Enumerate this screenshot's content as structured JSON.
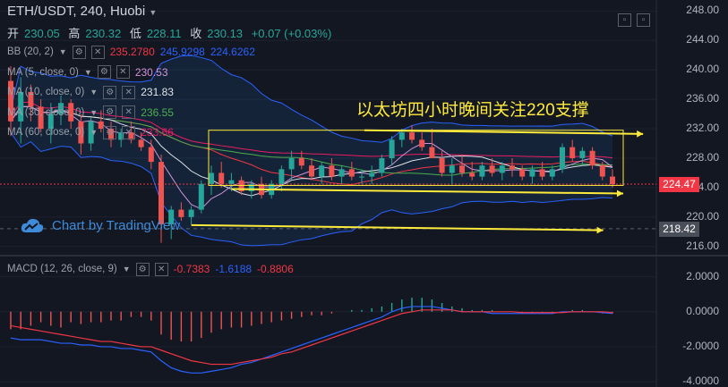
{
  "header": {
    "symbol": "ETH/USDT, 240, Huobi",
    "ohlc": [
      {
        "label": "开",
        "value": "230.05"
      },
      {
        "label": "高",
        "value": "230.32"
      },
      {
        "label": "低",
        "value": "228.11"
      },
      {
        "label": "收",
        "value": "230.13"
      }
    ],
    "change": "+0.07 (+0.03%)"
  },
  "indicators": [
    {
      "name": "BB (20, 2)",
      "values": [
        "235.2780",
        "245.9298",
        "224.6262"
      ],
      "colors": [
        "#f23645",
        "#2962ff",
        "#2962ff"
      ]
    },
    {
      "name": "MA (5, close, 0)",
      "values": [
        "230.53"
      ],
      "colors": [
        "#ce93d8"
      ]
    },
    {
      "name": "MA (10, close, 0)",
      "values": [
        "231.83"
      ],
      "colors": [
        "#e0e3eb"
      ]
    },
    {
      "name": "MA (30, close, 0)",
      "values": [
        "236.55"
      ],
      "colors": [
        "#4caf50"
      ]
    },
    {
      "name": "MA (60, close, 0)",
      "values": [
        "233.66"
      ],
      "colors": [
        "#e91e63"
      ]
    }
  ],
  "macd": {
    "name": "MACD (12, 26, close, 9)",
    "values": [
      "-0.7383",
      "-1.6188",
      "-0.8806"
    ],
    "colors": [
      "#f23645",
      "#2962ff",
      "#f23645"
    ]
  },
  "annotation": "以太坊四小时晚间关注220支撑",
  "watermark": "Chart by TradingView",
  "price_tags": [
    {
      "value": "224.47",
      "color": "#f23645",
      "price": 224.47
    },
    {
      "value": "218.42",
      "color": "#4a4e59",
      "price": 218.42
    }
  ],
  "colors": {
    "up": "#26a69a",
    "down": "#ef5350",
    "annotation": "#ffeb3b",
    "bg": "#131722"
  },
  "chart_data": [
    {
      "type": "candlestick",
      "yticks": [
        "216.00",
        "220.00",
        "224.00",
        "228.00",
        "232.00",
        "236.00",
        "240.00",
        "244.00",
        "248.00"
      ],
      "ytick_values": [
        216,
        220,
        224,
        228,
        232,
        236,
        240,
        244,
        248
      ],
      "ylim": [
        215,
        249.5
      ],
      "candles": [
        [
          238.5,
          240.5,
          231,
          233
        ],
        [
          233,
          239,
          230,
          237
        ],
        [
          237,
          238,
          233,
          235
        ],
        [
          235,
          236,
          231.5,
          232
        ],
        [
          232,
          235.5,
          230,
          234
        ],
        [
          234,
          236.5,
          232.5,
          235.5
        ],
        [
          235.5,
          236,
          232,
          233
        ],
        [
          233,
          234,
          228.5,
          230
        ],
        [
          230,
          233.5,
          229,
          233
        ],
        [
          233,
          234.5,
          231.5,
          232
        ],
        [
          232,
          233,
          229.5,
          230.5
        ],
        [
          230.5,
          232,
          229.5,
          231.5
        ],
        [
          231.5,
          233,
          230,
          230.5
        ],
        [
          230.5,
          231.5,
          229,
          229.5
        ],
        [
          229.5,
          230.5,
          226.5,
          227.5
        ],
        [
          227.5,
          228.5,
          216.5,
          219
        ],
        [
          219,
          221.5,
          217,
          221
        ],
        [
          221,
          222,
          219.5,
          220
        ],
        [
          220,
          221.5,
          219,
          221
        ],
        [
          221,
          225,
          220.5,
          224.5
        ],
        [
          224.5,
          227,
          223,
          226
        ],
        [
          226,
          227.5,
          224,
          224.5
        ],
        [
          224.5,
          226,
          223.5,
          225
        ],
        [
          225,
          225.5,
          223,
          223.5
        ],
        [
          223.5,
          225,
          222.5,
          224.5
        ],
        [
          224.5,
          225.5,
          222.5,
          223
        ],
        [
          223,
          225,
          222.5,
          224.5
        ],
        [
          224.5,
          227,
          223.5,
          226.5
        ],
        [
          226.5,
          229,
          225,
          228
        ],
        [
          228,
          229,
          226.5,
          227
        ],
        [
          227,
          228,
          225,
          225.5
        ],
        [
          225.5,
          227.5,
          224.5,
          227
        ],
        [
          227,
          228,
          225,
          225.5
        ],
        [
          225.5,
          227,
          224.5,
          226.5
        ],
        [
          226.5,
          227.5,
          225,
          225.5
        ],
        [
          225.5,
          226.5,
          224.5,
          225.5
        ],
        [
          225.5,
          227,
          224.5,
          226
        ],
        [
          226,
          228.5,
          225.5,
          228
        ],
        [
          228,
          231,
          227,
          230.5
        ],
        [
          230.5,
          232,
          229.5,
          231.5
        ],
        [
          231.5,
          232.5,
          230,
          230.5
        ],
        [
          230.5,
          231.5,
          229,
          229.5
        ],
        [
          229.5,
          232,
          228,
          228
        ],
        [
          228,
          229,
          225.5,
          226
        ],
        [
          226,
          228,
          224.5,
          227
        ],
        [
          227,
          228.5,
          225.5,
          226
        ],
        [
          226,
          227.5,
          225,
          225.5
        ],
        [
          225.5,
          227.5,
          225,
          227
        ],
        [
          227,
          228,
          225.5,
          226
        ],
        [
          226,
          227.5,
          225,
          227
        ],
        [
          227,
          228,
          225.5,
          226.5
        ],
        [
          226.5,
          227,
          225,
          225.5
        ],
        [
          225.5,
          227,
          224.5,
          226.5
        ],
        [
          226.5,
          227.5,
          225,
          225.5
        ],
        [
          225.5,
          227,
          225,
          226.5
        ],
        [
          226.5,
          230,
          226,
          229.5
        ],
        [
          229.5,
          230.5,
          227.5,
          228
        ],
        [
          228,
          229.5,
          227,
          229
        ],
        [
          229,
          229.5,
          226.5,
          227
        ],
        [
          227,
          227.5,
          225,
          225.5
        ],
        [
          225.5,
          226.5,
          224,
          224.47
        ]
      ]
    },
    {
      "type": "bar",
      "name": "MACD",
      "yticks": [
        "-4.0000",
        "-2.0000",
        "0.0000",
        "2.0000"
      ],
      "ytick_values": [
        -4,
        -2,
        0,
        2
      ],
      "ylim": [
        -4.3,
        2.9
      ],
      "histogram": [
        -1.0,
        -1.0,
        -0.8,
        -0.6,
        -0.8,
        -0.9,
        -0.6,
        -0.7,
        -0.6,
        -0.6,
        -0.5,
        -0.5,
        -0.3,
        -0.3,
        -0.5,
        -1.3,
        -1.6,
        -1.7,
        -1.7,
        -1.5,
        -1.2,
        -1.0,
        -0.9,
        -0.9,
        -0.8,
        -0.7,
        -0.6,
        -0.5,
        -0.4,
        -0.3,
        -0.2,
        -0.2,
        -0.1,
        0.0,
        0.1,
        0.1,
        0.2,
        0.3,
        0.5,
        0.7,
        0.8,
        0.8,
        0.7,
        0.5,
        0.3,
        0.2,
        0.1,
        0.1,
        0.1,
        0.0,
        0.0,
        -0.1,
        -0.1,
        -0.1,
        -0.1,
        0.0,
        0.1,
        0.1,
        0.0,
        -0.1,
        -0.1
      ],
      "macd_line": [
        -1.5,
        -1.6,
        -1.6,
        -1.6,
        -1.7,
        -1.8,
        -1.8,
        -1.9,
        -1.9,
        -2.0,
        -2.0,
        -2.1,
        -2.1,
        -2.2,
        -2.3,
        -2.8,
        -3.2,
        -3.4,
        -3.5,
        -3.5,
        -3.4,
        -3.3,
        -3.2,
        -3.0,
        -2.9,
        -2.7,
        -2.5,
        -2.3,
        -2.1,
        -1.9,
        -1.7,
        -1.5,
        -1.3,
        -1.1,
        -0.9,
        -0.7,
        -0.5,
        -0.3,
        0.0,
        0.2,
        0.3,
        0.3,
        0.3,
        0.2,
        0.1,
        0.0,
        0.0,
        0.0,
        -0.1,
        -0.1,
        -0.1,
        -0.1,
        -0.1,
        -0.1,
        -0.1,
        0.0,
        0.0,
        0.0,
        0.0,
        -0.05,
        -0.1
      ],
      "signal_line": [
        -0.8,
        -0.9,
        -1.0,
        -1.1,
        -1.2,
        -1.3,
        -1.4,
        -1.5,
        -1.6,
        -1.7,
        -1.7,
        -1.8,
        -1.9,
        -2.0,
        -2.0,
        -2.2,
        -2.4,
        -2.6,
        -2.8,
        -2.9,
        -3.0,
        -3.0,
        -3.0,
        -2.9,
        -2.8,
        -2.7,
        -2.6,
        -2.4,
        -2.3,
        -2.1,
        -1.9,
        -1.7,
        -1.5,
        -1.3,
        -1.1,
        -0.9,
        -0.7,
        -0.5,
        -0.3,
        -0.1,
        0.0,
        0.1,
        0.1,
        0.1,
        0.1,
        0.0,
        0.0,
        0.0,
        0.0,
        0.0,
        0.0,
        -0.05,
        -0.05,
        -0.05,
        -0.05,
        -0.05,
        0.0,
        0.0,
        0.0,
        0.0,
        -0.05
      ]
    }
  ]
}
